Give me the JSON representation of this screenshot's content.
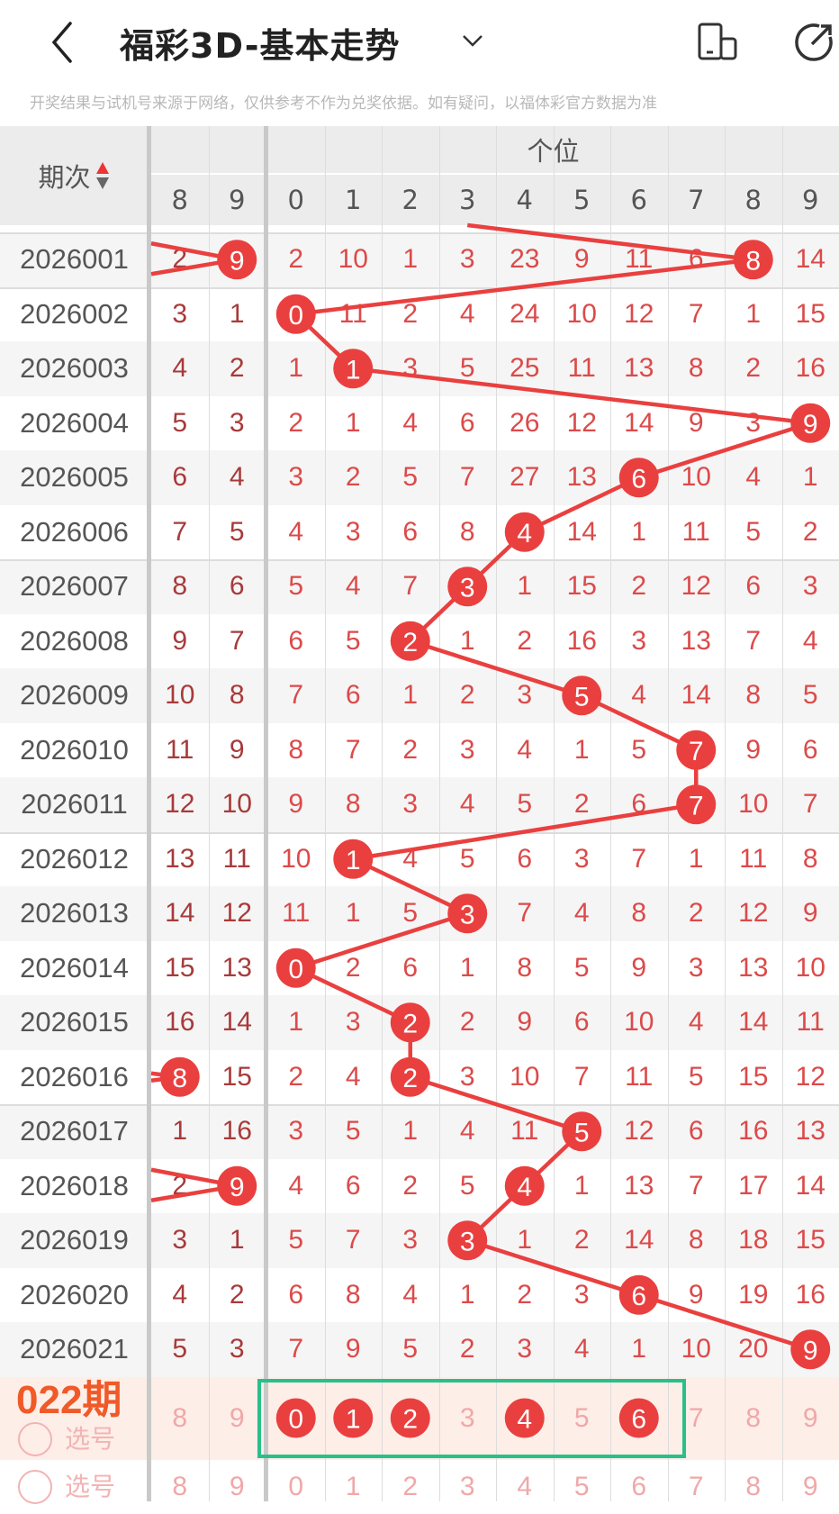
{
  "header": {
    "title": "福彩3D-基本走势",
    "icons": [
      "back-icon",
      "chevron-down-icon",
      "phone-icon",
      "share-icon"
    ]
  },
  "disclaimer": "开奖结果与试机号来源于网络，仅供参考不作为兑奖依据。如有疑问，以福体彩官方数据为准",
  "table": {
    "period_header": "期次",
    "group_header": "个位",
    "left_columns": [
      "8",
      "9"
    ],
    "columns": [
      "0",
      "1",
      "2",
      "3",
      "4",
      "5",
      "6",
      "7",
      "8",
      "9"
    ],
    "rows": [
      {
        "period": "2026001",
        "left": [
          "2",
          "9"
        ],
        "left_hit": 1,
        "vals": [
          "2",
          "10",
          "1",
          "3",
          "23",
          "9",
          "11",
          "6",
          "8",
          "14"
        ],
        "hit": 8
      },
      {
        "period": "2026002",
        "left": [
          "3",
          "1"
        ],
        "left_hit": null,
        "vals": [
          "0",
          "11",
          "2",
          "4",
          "24",
          "10",
          "12",
          "7",
          "1",
          "15"
        ],
        "hit": 0
      },
      {
        "period": "2026003",
        "left": [
          "4",
          "2"
        ],
        "left_hit": null,
        "vals": [
          "1",
          "1",
          "3",
          "5",
          "25",
          "11",
          "13",
          "8",
          "2",
          "16"
        ],
        "hit": 1
      },
      {
        "period": "2026004",
        "left": [
          "5",
          "3"
        ],
        "left_hit": null,
        "vals": [
          "2",
          "1",
          "4",
          "6",
          "26",
          "12",
          "14",
          "9",
          "3",
          "9"
        ],
        "hit": 9
      },
      {
        "period": "2026005",
        "left": [
          "6",
          "4"
        ],
        "left_hit": null,
        "vals": [
          "3",
          "2",
          "5",
          "7",
          "27",
          "13",
          "6",
          "10",
          "4",
          "1"
        ],
        "hit": 6
      },
      {
        "period": "2026006",
        "left": [
          "7",
          "5"
        ],
        "left_hit": null,
        "vals": [
          "4",
          "3",
          "6",
          "8",
          "4",
          "14",
          "1",
          "11",
          "5",
          "2"
        ],
        "hit": 4
      },
      {
        "period": "2026007",
        "left": [
          "8",
          "6"
        ],
        "left_hit": null,
        "vals": [
          "5",
          "4",
          "7",
          "3",
          "1",
          "15",
          "2",
          "12",
          "6",
          "3"
        ],
        "hit": 3
      },
      {
        "period": "2026008",
        "left": [
          "9",
          "7"
        ],
        "left_hit": null,
        "vals": [
          "6",
          "5",
          "2",
          "1",
          "2",
          "16",
          "3",
          "13",
          "7",
          "4"
        ],
        "hit": 2
      },
      {
        "period": "2026009",
        "left": [
          "10",
          "8"
        ],
        "left_hit": null,
        "vals": [
          "7",
          "6",
          "1",
          "2",
          "3",
          "5",
          "4",
          "14",
          "8",
          "5"
        ],
        "hit": 5
      },
      {
        "period": "2026010",
        "left": [
          "11",
          "9"
        ],
        "left_hit": null,
        "vals": [
          "8",
          "7",
          "2",
          "3",
          "4",
          "1",
          "5",
          "7",
          "9",
          "6"
        ],
        "hit": 7
      },
      {
        "period": "2026011",
        "left": [
          "12",
          "10"
        ],
        "left_hit": null,
        "vals": [
          "9",
          "8",
          "3",
          "4",
          "5",
          "2",
          "6",
          "7",
          "10",
          "7"
        ],
        "hit": 7
      },
      {
        "period": "2026012",
        "left": [
          "13",
          "11"
        ],
        "left_hit": null,
        "vals": [
          "10",
          "1",
          "4",
          "5",
          "6",
          "3",
          "7",
          "1",
          "11",
          "8"
        ],
        "hit": 1
      },
      {
        "period": "2026013",
        "left": [
          "14",
          "12"
        ],
        "left_hit": null,
        "vals": [
          "11",
          "1",
          "5",
          "3",
          "7",
          "4",
          "8",
          "2",
          "12",
          "9"
        ],
        "hit": 3
      },
      {
        "period": "2026014",
        "left": [
          "15",
          "13"
        ],
        "left_hit": null,
        "vals": [
          "0",
          "2",
          "6",
          "1",
          "8",
          "5",
          "9",
          "3",
          "13",
          "10"
        ],
        "hit": 0
      },
      {
        "period": "2026015",
        "left": [
          "16",
          "14"
        ],
        "left_hit": null,
        "vals": [
          "1",
          "3",
          "2",
          "2",
          "9",
          "6",
          "10",
          "4",
          "14",
          "11"
        ],
        "hit": 2
      },
      {
        "period": "2026016",
        "left": [
          "8",
          "15"
        ],
        "left_hit": 0,
        "vals": [
          "2",
          "4",
          "2",
          "3",
          "10",
          "7",
          "11",
          "5",
          "15",
          "12"
        ],
        "hit": 2
      },
      {
        "period": "2026017",
        "left": [
          "1",
          "16"
        ],
        "left_hit": null,
        "vals": [
          "3",
          "5",
          "1",
          "4",
          "11",
          "5",
          "12",
          "6",
          "16",
          "13"
        ],
        "hit": 5
      },
      {
        "period": "2026018",
        "left": [
          "2",
          "9"
        ],
        "left_hit": 1,
        "vals": [
          "4",
          "6",
          "2",
          "5",
          "4",
          "1",
          "13",
          "7",
          "17",
          "14"
        ],
        "hit": 4
      },
      {
        "period": "2026019",
        "left": [
          "3",
          "1"
        ],
        "left_hit": null,
        "vals": [
          "5",
          "7",
          "3",
          "3",
          "1",
          "2",
          "14",
          "8",
          "18",
          "15"
        ],
        "hit": 3
      },
      {
        "period": "2026020",
        "left": [
          "4",
          "2"
        ],
        "left_hit": null,
        "vals": [
          "6",
          "8",
          "4",
          "1",
          "2",
          "3",
          "6",
          "9",
          "19",
          "16"
        ],
        "hit": 6
      },
      {
        "period": "2026021",
        "left": [
          "5",
          "3"
        ],
        "left_hit": null,
        "vals": [
          "7",
          "9",
          "5",
          "2",
          "3",
          "4",
          "1",
          "10",
          "20",
          "9"
        ],
        "hit": 9
      }
    ],
    "pick_rows": [
      {
        "label": "选号",
        "overlay": "022期",
        "left": [
          "8",
          "9"
        ],
        "vals": [
          "0",
          "1",
          "2",
          "3",
          "4",
          "5",
          "6",
          "7",
          "8",
          "9"
        ],
        "selected": [
          0,
          1,
          2,
          4,
          6
        ]
      },
      {
        "label": "选号",
        "left": [
          "8",
          "9"
        ],
        "vals": [
          "0",
          "1",
          "2",
          "3",
          "4",
          "5",
          "6",
          "7",
          "8",
          "9"
        ],
        "selected": []
      }
    ]
  },
  "colors": {
    "hit": "#e9403f",
    "value": "#dc4a4a",
    "left_value": "#a83a3a",
    "period": "#555555",
    "highlight_box": "#28c08a",
    "overlay_text": "#f05a28",
    "pick_row_bg": "#fdeee8"
  }
}
